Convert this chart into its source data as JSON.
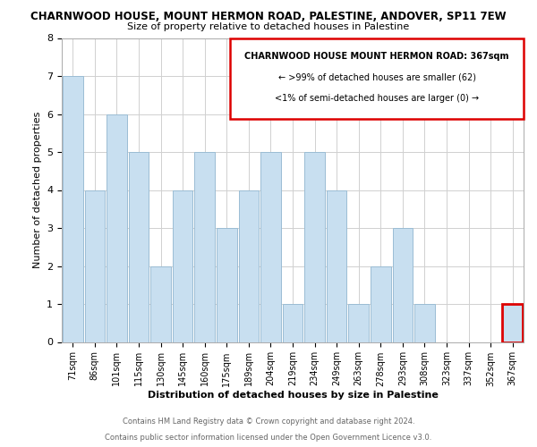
{
  "title": "CHARNWOOD HOUSE, MOUNT HERMON ROAD, PALESTINE, ANDOVER, SP11 7EW",
  "subtitle": "Size of property relative to detached houses in Palestine",
  "xlabel": "Distribution of detached houses by size in Palestine",
  "ylabel": "Number of detached properties",
  "categories": [
    "71sqm",
    "86sqm",
    "101sqm",
    "115sqm",
    "130sqm",
    "145sqm",
    "160sqm",
    "175sqm",
    "189sqm",
    "204sqm",
    "219sqm",
    "234sqm",
    "249sqm",
    "263sqm",
    "278sqm",
    "293sqm",
    "308sqm",
    "323sqm",
    "337sqm",
    "352sqm",
    "367sqm"
  ],
  "values": [
    7,
    4,
    6,
    5,
    2,
    4,
    5,
    3,
    4,
    5,
    1,
    5,
    4,
    1,
    2,
    3,
    1,
    0,
    0,
    0,
    1
  ],
  "bar_color": "#c8dff0",
  "bar_edge_color": "#9bbdd4",
  "highlight_bar_index": 20,
  "highlight_box_color": "#dd0000",
  "ylim": [
    0,
    8
  ],
  "yticks": [
    0,
    1,
    2,
    3,
    4,
    5,
    6,
    7,
    8
  ],
  "annotation_title": "CHARNWOOD HOUSE MOUNT HERMON ROAD: 367sqm",
  "annotation_line1": "← >99% of detached houses are smaller (62)",
  "annotation_line2": "<1% of semi-detached houses are larger (0) →",
  "footer1": "Contains HM Land Registry data © Crown copyright and database right 2024.",
  "footer2": "Contains public sector information licensed under the Open Government Licence v3.0.",
  "background_color": "#ffffff",
  "grid_color": "#d0d0d0"
}
